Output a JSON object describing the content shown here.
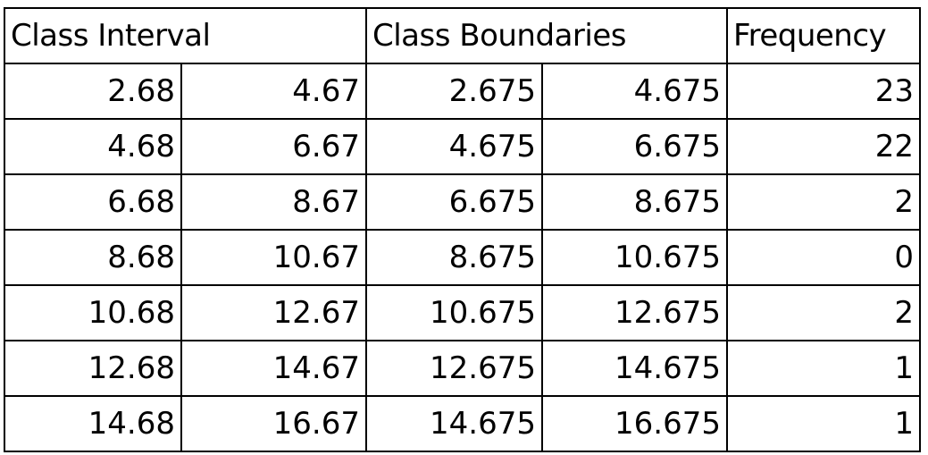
{
  "table": {
    "headers": {
      "class_interval": "Class Interval",
      "class_boundaries": "Class Boundaries",
      "frequency": "Frequency"
    },
    "rows": [
      {
        "interval_lower": "2.68",
        "interval_upper": "4.67",
        "boundary_lower": "2.675",
        "boundary_upper": "4.675",
        "frequency": "23"
      },
      {
        "interval_lower": "4.68",
        "interval_upper": "6.67",
        "boundary_lower": "4.675",
        "boundary_upper": "6.675",
        "frequency": "22"
      },
      {
        "interval_lower": "6.68",
        "interval_upper": "8.67",
        "boundary_lower": "6.675",
        "boundary_upper": "8.675",
        "frequency": "2"
      },
      {
        "interval_lower": "8.68",
        "interval_upper": "10.67",
        "boundary_lower": "8.675",
        "boundary_upper": "10.675",
        "frequency": "0"
      },
      {
        "interval_lower": "10.68",
        "interval_upper": "12.67",
        "boundary_lower": "10.675",
        "boundary_upper": "12.675",
        "frequency": "2"
      },
      {
        "interval_lower": "12.68",
        "interval_upper": "14.67",
        "boundary_lower": "12.675",
        "boundary_upper": "14.675",
        "frequency": "1"
      },
      {
        "interval_lower": "14.68",
        "interval_upper": "16.67",
        "boundary_lower": "14.675",
        "boundary_upper": "16.675",
        "frequency": "1"
      }
    ]
  }
}
